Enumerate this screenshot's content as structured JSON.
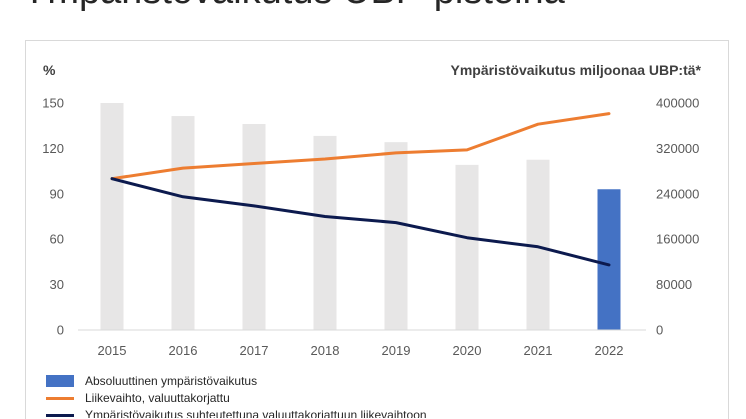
{
  "page": {
    "top_title": "Ympäristövaikutus UBP-pisteinä"
  },
  "colors": {
    "bar_past": "#e7e6e6",
    "bar_highlight": "#4472c4",
    "revenue_line": "#ed7d31",
    "relative_line": "#0c1a4e",
    "axis": "#d9d9d9",
    "tick_text": "#595959",
    "title_text": "#404040"
  },
  "chart_data": {
    "type": "bar",
    "title": "",
    "ylabel_left": "%",
    "ylabel_right": "Ympäristövaikutus miljoonaa UBP:tä*",
    "categories": [
      "2015",
      "2016",
      "2017",
      "2018",
      "2019",
      "2020",
      "2021",
      "2022"
    ],
    "y_left": {
      "min": 0,
      "max": 150,
      "ticks": [
        0,
        30,
        60,
        90,
        120,
        150
      ]
    },
    "y_right": {
      "min": 0,
      "max": 400000,
      "ticks": [
        0,
        80000,
        160000,
        240000,
        320000,
        400000
      ]
    },
    "highlight_category": "2022",
    "grid": false,
    "legend_position": "bottom-left",
    "series": [
      {
        "name": "Absoluuttinen ympäristövaikutus",
        "type": "bar",
        "axis": "right",
        "values": [
          400000,
          377000,
          363000,
          342000,
          331000,
          291000,
          300000,
          248000
        ]
      },
      {
        "name": "Liikevaihto, valuuttakorjattu",
        "type": "line",
        "axis": "left",
        "values": [
          100,
          107,
          110,
          113,
          117,
          119,
          136,
          143
        ]
      },
      {
        "name": "Ympäristövaikutus suhteutettuna valuuttakorjattuun liikevaihtoon",
        "type": "line",
        "axis": "left",
        "values": [
          100,
          88,
          82,
          75,
          71,
          61,
          55,
          43
        ]
      }
    ]
  }
}
